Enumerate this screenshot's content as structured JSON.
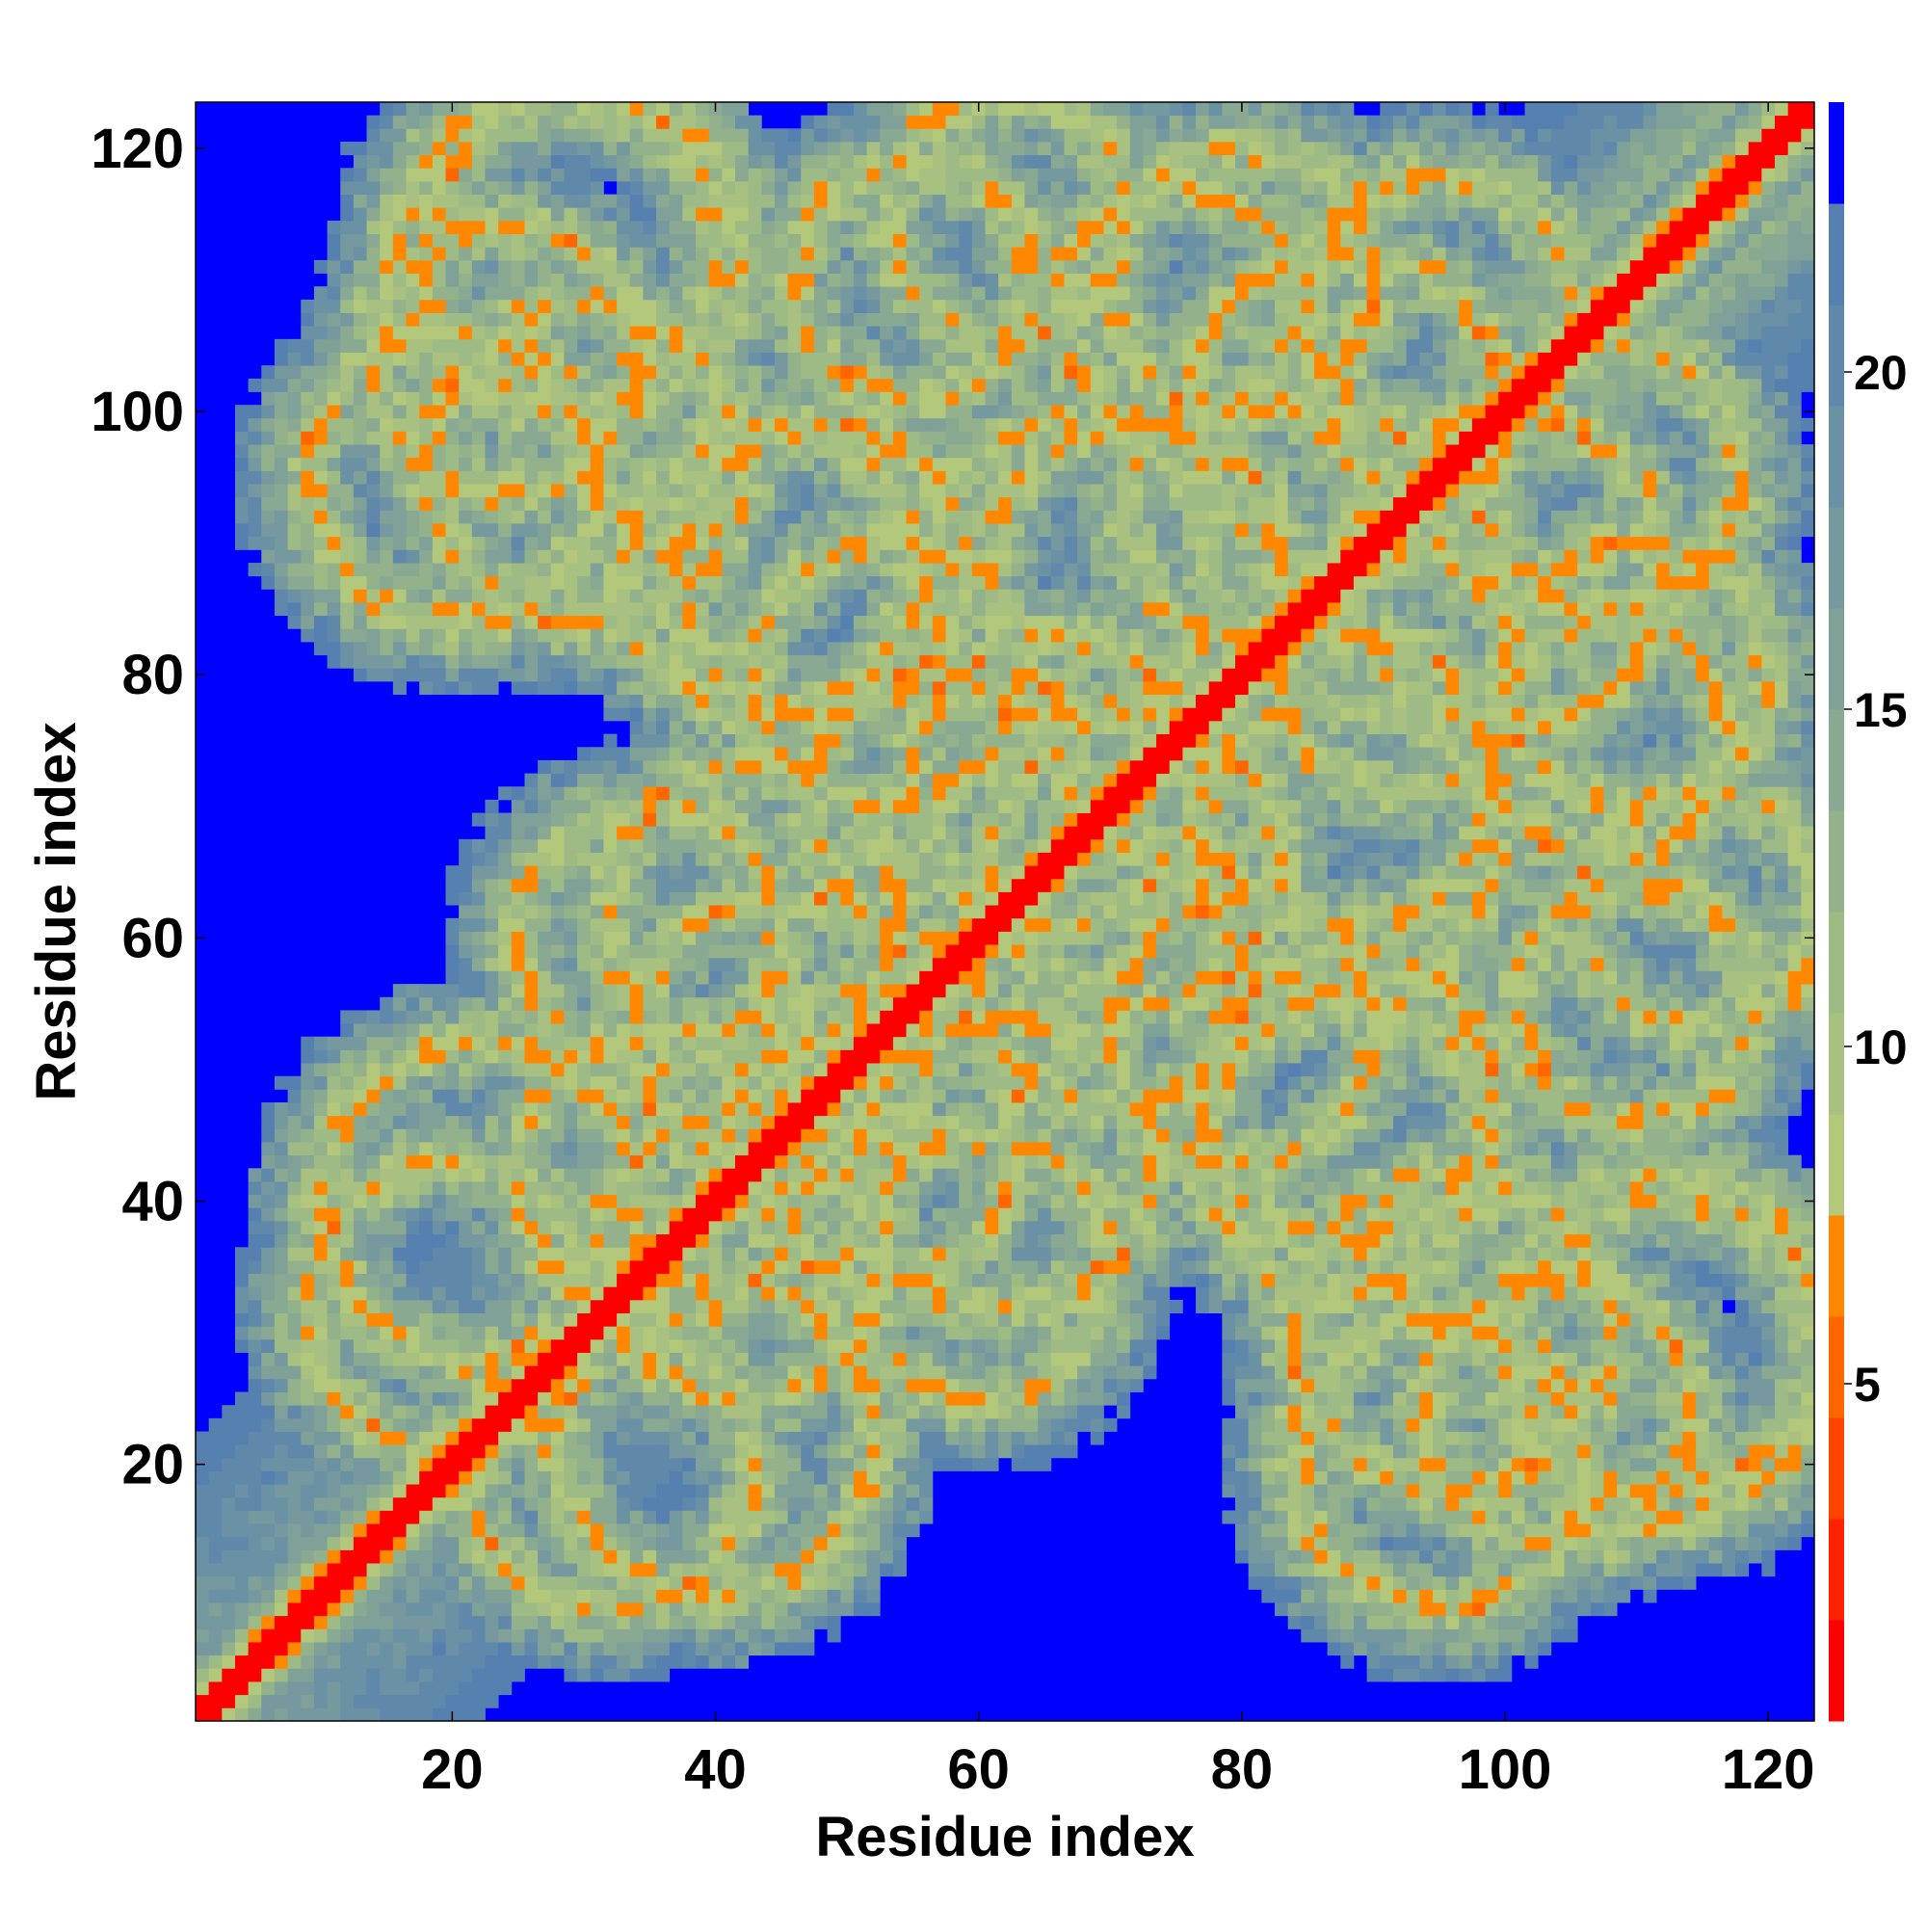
{
  "chart_data": {
    "type": "heatmap",
    "title": "",
    "xlabel": "Residue index",
    "ylabel": "Residue index",
    "n_residues": 123,
    "xlim": [
      1,
      123
    ],
    "ylim": [
      1,
      123
    ],
    "x_ticks": [
      20,
      40,
      60,
      80,
      100,
      120
    ],
    "y_ticks": [
      20,
      40,
      60,
      80,
      100,
      120
    ],
    "colorbar": {
      "range": [
        0,
        24
      ],
      "ticks": [
        5,
        10,
        15,
        20
      ],
      "levels": [
        {
          "max": 1.5,
          "color": "#ff0000"
        },
        {
          "max": 3.0,
          "color": "#ff2200"
        },
        {
          "max": 4.5,
          "color": "#ff4400"
        },
        {
          "max": 6.0,
          "color": "#ff6600"
        },
        {
          "max": 7.5,
          "color": "#ff8800"
        },
        {
          "max": 9.0,
          "color": "#b3c87a"
        },
        {
          "max": 10.5,
          "color": "#a8c080"
        },
        {
          "max": 12.0,
          "color": "#9ebb86"
        },
        {
          "max": 13.5,
          "color": "#93b28c"
        },
        {
          "max": 15.0,
          "color": "#89a992"
        },
        {
          "max": 16.5,
          "color": "#7fa198"
        },
        {
          "max": 18.0,
          "color": "#75999e"
        },
        {
          "max": 19.5,
          "color": "#6b91a4"
        },
        {
          "max": 21.0,
          "color": "#6088aa"
        },
        {
          "max": 22.5,
          "color": "#5580b0"
        },
        {
          "max": 24.0,
          "color": "#0000ff"
        }
      ]
    },
    "grid": false,
    "legend": "colorbar-right",
    "description": "Symmetric residue-residue distance map; red main diagonal, orange contact bands, green-grey intermediate distances, blue beyond cutoff"
  }
}
